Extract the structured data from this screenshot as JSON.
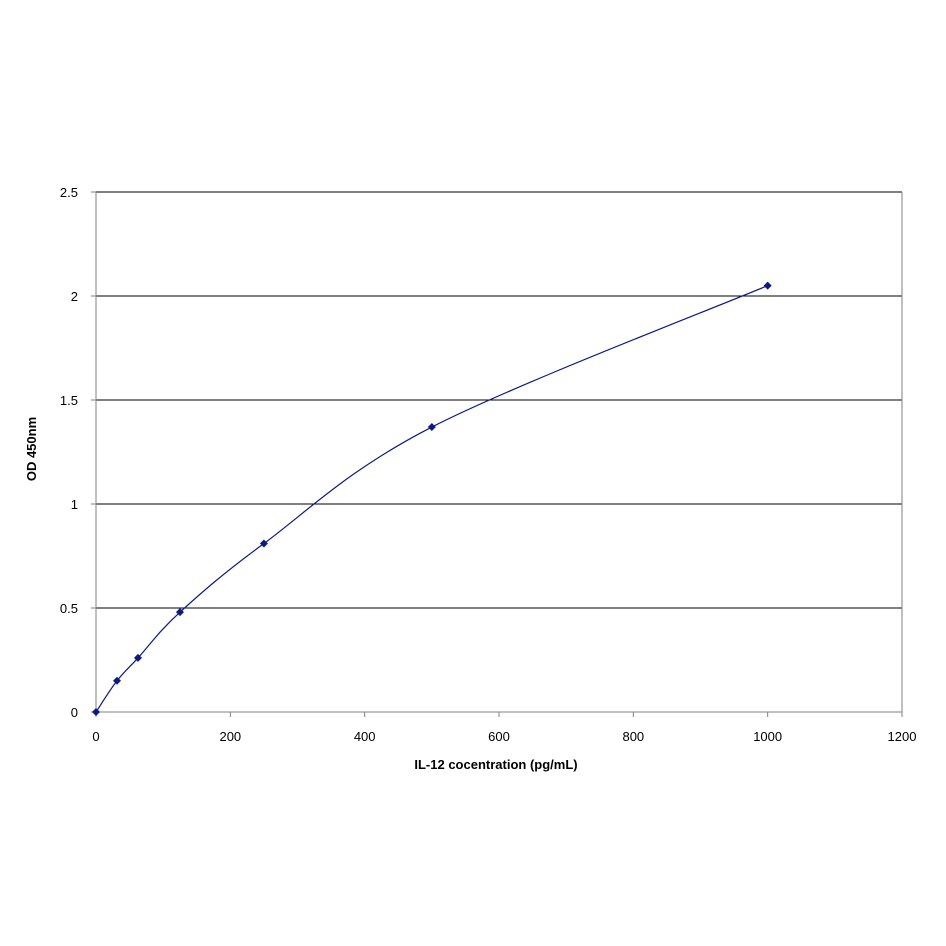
{
  "chart_data": {
    "type": "scatter",
    "title": "",
    "xlabel": "IL-12 cocentration (pg/mL)",
    "ylabel": "OD 450nm",
    "xlim": [
      0,
      1200
    ],
    "ylim": [
      0,
      2.5
    ],
    "x_ticks": [
      0,
      200,
      400,
      600,
      800,
      1000,
      1200
    ],
    "y_ticks": [
      0,
      0.5,
      1,
      1.5,
      2,
      2.5
    ],
    "x_tick_labels": [
      "0",
      "200",
      "400",
      "600",
      "800",
      "1000",
      "1200"
    ],
    "y_tick_labels": [
      "0",
      "0.5",
      "1",
      "1.5",
      "2",
      "2.5"
    ],
    "grid": "horizontal major gridlines",
    "legend": "none",
    "marker": "diamond",
    "smoothed_line": true,
    "colors": {
      "series": "#0a1a8c",
      "grid": "#000000",
      "axis": "#808080"
    },
    "series": [
      {
        "x": [
          0,
          31.25,
          62.5,
          125,
          250,
          500,
          1000
        ],
        "y": [
          0.0,
          0.15,
          0.26,
          0.48,
          0.81,
          1.37,
          2.05
        ]
      }
    ]
  }
}
